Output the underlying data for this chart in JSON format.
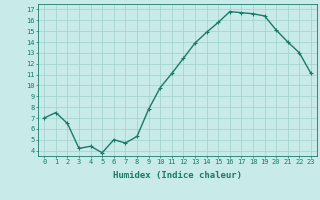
{
  "x": [
    0,
    1,
    2,
    3,
    4,
    5,
    6,
    7,
    8,
    9,
    10,
    11,
    12,
    13,
    14,
    15,
    16,
    17,
    18,
    19,
    20,
    21,
    22,
    23
  ],
  "y": [
    7.0,
    7.5,
    6.5,
    4.2,
    4.4,
    3.8,
    5.0,
    4.7,
    5.3,
    7.8,
    9.8,
    11.1,
    12.5,
    13.9,
    14.9,
    15.8,
    16.8,
    16.7,
    16.6,
    16.4,
    15.1,
    14.0,
    13.0,
    11.1
  ],
  "line_color": "#1a7a6a",
  "marker": "+",
  "marker_size": 3,
  "background_color": "#c8eae8",
  "grid_color": "#9fcfcc",
  "xlabel": "Humidex (Indice chaleur)",
  "xlim": [
    -0.5,
    23.5
  ],
  "ylim": [
    3.5,
    17.5
  ],
  "yticks": [
    4,
    5,
    6,
    7,
    8,
    9,
    10,
    11,
    12,
    13,
    14,
    15,
    16,
    17
  ],
  "xticks": [
    0,
    1,
    2,
    3,
    4,
    5,
    6,
    7,
    8,
    9,
    10,
    11,
    12,
    13,
    14,
    15,
    16,
    17,
    18,
    19,
    20,
    21,
    22,
    23
  ],
  "tick_fontsize": 5.0,
  "label_fontsize": 6.5,
  "line_width": 1.0
}
